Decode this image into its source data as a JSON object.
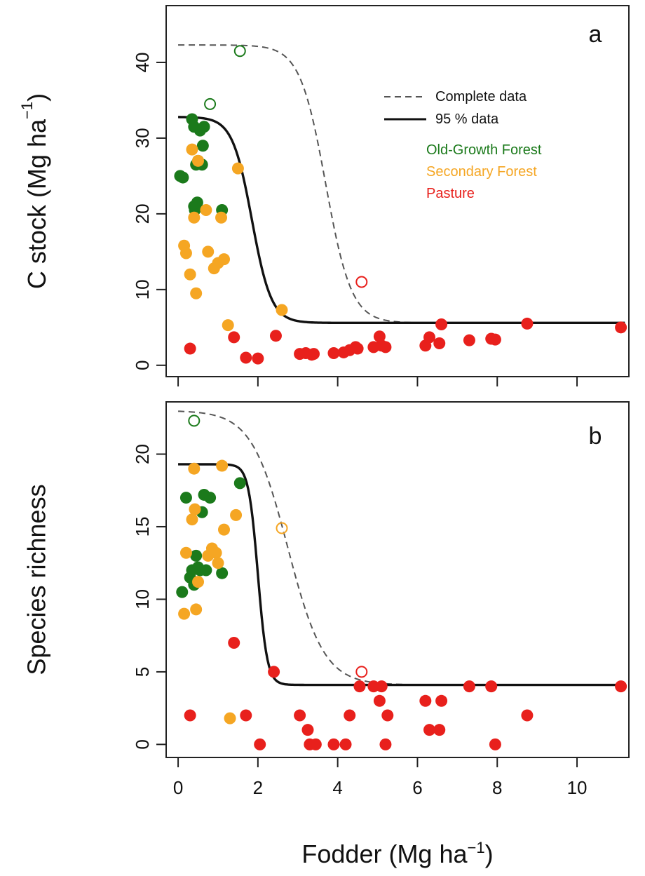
{
  "chart_data": [
    {
      "panel": "a",
      "type": "scatter",
      "xlabel": "Fodder (Mg ha⁻¹)",
      "ylabel": "C stock (Mg ha⁻¹)",
      "xlim": [
        -0.3,
        11.3
      ],
      "ylim": [
        -1.5,
        47.5
      ],
      "xticks": [
        0,
        2,
        4,
        6,
        8,
        10
      ],
      "yticks": [
        0,
        10,
        20,
        30,
        40
      ],
      "legend": {
        "position": "top-right",
        "lines": [
          {
            "label": "Complete data",
            "style": "dashed"
          },
          {
            "label": "95 % data",
            "style": "solid"
          }
        ],
        "groups": [
          {
            "label": "Old-Growth Forest",
            "color": "#1b7a1b"
          },
          {
            "label": "Secondary Forest",
            "color": "#f5a623"
          },
          {
            "label": "Pasture",
            "color": "#e8201c"
          }
        ]
      },
      "series": [
        {
          "name": "Old-Growth Forest",
          "color": "#1b7a1b",
          "x": [
            0.05,
            0.12,
            0.35,
            0.4,
            0.45,
            0.5,
            0.55,
            0.6,
            0.62,
            0.65,
            0.4,
            0.42,
            0.45,
            0.48,
            1.1
          ],
          "y": [
            25,
            24.8,
            32.5,
            31.5,
            26.5,
            27,
            31,
            26.5,
            29,
            31.5,
            21,
            20.5,
            20.8,
            21.5,
            20.5
          ]
        },
        {
          "name": "Secondary Forest",
          "color": "#f5a623",
          "x": [
            0.15,
            0.2,
            0.3,
            0.35,
            0.4,
            0.45,
            0.5,
            0.7,
            0.75,
            0.9,
            1.0,
            1.08,
            1.15,
            1.25,
            1.5,
            2.6
          ],
          "y": [
            15.8,
            14.8,
            12,
            28.5,
            19.5,
            9.5,
            27,
            20.5,
            15,
            12.8,
            13.5,
            19.5,
            14,
            5.3,
            26,
            7.3
          ]
        },
        {
          "name": "Pasture",
          "color": "#e8201c",
          "x": [
            0.3,
            1.4,
            1.7,
            2.0,
            2.45,
            3.05,
            3.2,
            3.35,
            3.4,
            3.9,
            4.15,
            4.3,
            4.45,
            4.5,
            4.9,
            5.05,
            5.1,
            5.2,
            6.2,
            6.3,
            6.55,
            6.6,
            7.3,
            7.85,
            7.95,
            8.75,
            11.1
          ],
          "y": [
            2.2,
            3.7,
            1,
            0.9,
            3.9,
            1.5,
            1.6,
            1.4,
            1.5,
            1.6,
            1.7,
            2,
            2.4,
            2.2,
            2.4,
            3.8,
            2.6,
            2.4,
            2.6,
            3.7,
            2.9,
            5.4,
            3.3,
            3.5,
            3.4,
            5.5,
            5
          ]
        },
        {
          "name": "Outliers",
          "style": "open",
          "points": [
            {
              "x": 0.8,
              "y": 34.5,
              "color": "#1b7a1b"
            },
            {
              "x": 1.55,
              "y": 41.5,
              "color": "#1b7a1b"
            },
            {
              "x": 4.6,
              "y": 11,
              "color": "#e8201c"
            }
          ]
        }
      ],
      "curves": [
        {
          "name": "Complete data",
          "style": "dashed",
          "color": "#555555",
          "upper": 42.3,
          "lower": 5.6,
          "midpoint": 3.7,
          "slope": 3.1
        },
        {
          "name": "95 % data",
          "style": "solid",
          "color": "#111111",
          "upper": 32.8,
          "lower": 5.6,
          "midpoint": 1.85,
          "slope": 4.1
        }
      ]
    },
    {
      "panel": "b",
      "type": "scatter",
      "xlabel": "Fodder (Mg ha⁻¹)",
      "ylabel": "Species richness",
      "xlim": [
        -0.3,
        11.3
      ],
      "ylim": [
        -0.9,
        23.6
      ],
      "xticks": [
        0,
        2,
        4,
        6,
        8,
        10
      ],
      "yticks": [
        0,
        5,
        10,
        15,
        20
      ],
      "series": [
        {
          "name": "Old-Growth Forest",
          "color": "#1b7a1b",
          "x": [
            0.1,
            0.2,
            0.3,
            0.35,
            0.4,
            0.45,
            0.5,
            0.55,
            0.6,
            0.65,
            0.7,
            0.8,
            1.1,
            1.55
          ],
          "y": [
            10.5,
            17,
            11.5,
            12,
            11,
            13,
            12.2,
            12,
            16,
            17.2,
            12,
            17,
            11.8,
            18
          ]
        },
        {
          "name": "Secondary Forest",
          "color": "#f5a623",
          "x": [
            0.15,
            0.2,
            0.35,
            0.4,
            0.42,
            0.45,
            0.5,
            0.75,
            0.85,
            0.95,
            1.0,
            1.1,
            1.15,
            1.3,
            1.45
          ],
          "y": [
            9,
            13.2,
            15.5,
            19,
            16.2,
            9.3,
            11.2,
            13,
            13.5,
            13.2,
            12.5,
            19.2,
            14.8,
            1.8,
            15.8
          ]
        },
        {
          "name": "Pasture",
          "color": "#e8201c",
          "x": [
            0.3,
            1.4,
            1.7,
            2.05,
            2.4,
            3.05,
            3.25,
            3.3,
            3.45,
            3.9,
            4.2,
            4.3,
            4.55,
            4.9,
            5.05,
            5.1,
            5.2,
            5.25,
            6.2,
            6.3,
            6.55,
            6.6,
            7.3,
            7.85,
            7.95,
            8.75,
            11.1
          ],
          "y": [
            2,
            7,
            2,
            0,
            5,
            2,
            1,
            0,
            0,
            0,
            0,
            2,
            4,
            4,
            3,
            4,
            0,
            2,
            3,
            1,
            1,
            3,
            4,
            4,
            0,
            2,
            4
          ]
        },
        {
          "name": "Outliers",
          "style": "open",
          "points": [
            {
              "x": 0.4,
              "y": 22.3,
              "color": "#1b7a1b"
            },
            {
              "x": 2.6,
              "y": 14.9,
              "color": "#f5a623"
            },
            {
              "x": 4.6,
              "y": 5,
              "color": "#e8201c"
            }
          ]
        }
      ],
      "curves": [
        {
          "name": "Complete data",
          "style": "dashed",
          "color": "#555555",
          "upper": 23,
          "lower": 4.1,
          "midpoint": 2.75,
          "slope": 2.2
        },
        {
          "name": "95 % data",
          "style": "solid",
          "color": "#111111",
          "upper": 19.3,
          "lower": 4.1,
          "midpoint": 2.0,
          "slope": 8.5
        }
      ]
    }
  ]
}
